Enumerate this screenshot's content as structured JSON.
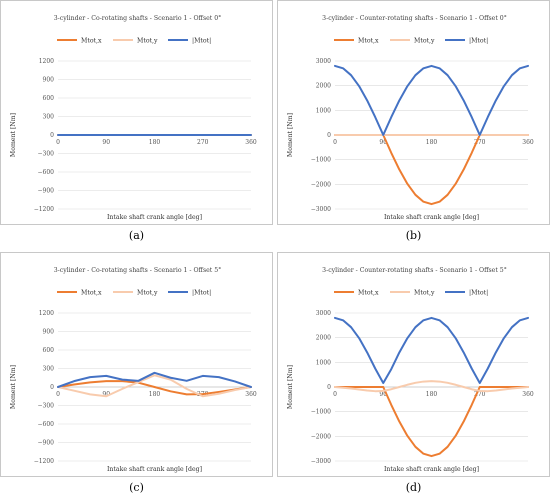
{
  "colors": {
    "mx": "#ED7D31",
    "my": "#F8CBAD",
    "mt": "#4472C4",
    "grid": "#d9d9d9",
    "axis": "#bfbfbf"
  },
  "chart_data": [
    {
      "panel_label": "(a)",
      "type": "line",
      "title": "3-cylinder - Co-rotating shafts - Scenario 1 - Offset 0°",
      "xlabel": "Intake shaft crank angle [deg]",
      "ylabel": "Moment [Nm]",
      "xlim": [
        0,
        360
      ],
      "ylim": [
        -1200,
        1200
      ],
      "xticks": [
        0,
        90,
        180,
        270,
        360
      ],
      "yticks": [
        1200,
        900,
        600,
        300,
        0,
        -300,
        -600,
        -900,
        -1200
      ],
      "x_axis_at": 0,
      "grid": "horizontal",
      "legend": "top",
      "x": [
        0,
        45,
        90,
        135,
        180,
        225,
        270,
        315,
        360
      ],
      "series": [
        {
          "name": "Mtot,x",
          "color_key": "mx",
          "values": [
            0,
            0,
            0,
            0,
            0,
            0,
            0,
            0,
            0
          ]
        },
        {
          "name": "Mtot,y",
          "color_key": "my",
          "values": [
            0,
            0,
            0,
            0,
            0,
            0,
            0,
            0,
            0
          ]
        },
        {
          "name": "|Mtot|",
          "color_key": "mt",
          "values": [
            0,
            0,
            0,
            0,
            0,
            0,
            0,
            0,
            0
          ]
        }
      ]
    },
    {
      "panel_label": "(b)",
      "type": "line",
      "title": "3-cylinder - Counter-rotating shafts - Scenario 1 - Offset 0°",
      "xlabel": "Intake shaft crank angle [deg]",
      "ylabel": "Moment [Nm]",
      "xlim": [
        0,
        360
      ],
      "ylim": [
        -3000,
        3000
      ],
      "xticks": [
        0,
        90,
        180,
        270,
        360
      ],
      "yticks": [
        3000,
        2000,
        1000,
        0,
        -1000,
        -2000,
        -3000
      ],
      "x_axis_at": 0,
      "grid": "horizontal",
      "legend": "top",
      "x": [
        0,
        15,
        30,
        45,
        60,
        75,
        90,
        105,
        120,
        135,
        150,
        165,
        180,
        195,
        210,
        225,
        240,
        255,
        270,
        285,
        300,
        315,
        330,
        345,
        360
      ],
      "series": [
        {
          "name": "Mtot,x",
          "color_key": "mx",
          "values": [
            0,
            0,
            0,
            0,
            0,
            0,
            0,
            -725,
            -1400,
            -1980,
            -2425,
            -2705,
            -2800,
            -2705,
            -2425,
            -1980,
            -1400,
            -725,
            0,
            0,
            0,
            0,
            0,
            0,
            0
          ]
        },
        {
          "name": "Mtot,y",
          "color_key": "my",
          "values": [
            0,
            0,
            0,
            0,
            0,
            0,
            0,
            0,
            0,
            0,
            0,
            0,
            0,
            0,
            0,
            0,
            0,
            0,
            0,
            0,
            0,
            0,
            0,
            0,
            0
          ]
        },
        {
          "name": "|Mtot|",
          "color_key": "mt",
          "values": [
            2800,
            2705,
            2425,
            1980,
            1400,
            725,
            0,
            725,
            1400,
            1980,
            2425,
            2705,
            2800,
            2705,
            2425,
            1980,
            1400,
            725,
            0,
            725,
            1400,
            1980,
            2425,
            2705,
            2800
          ]
        }
      ]
    },
    {
      "panel_label": "(c)",
      "type": "line",
      "title": "3-cylinder - Co-rotating shafts - Scenario 1 - Offset 5°",
      "xlabel": "Intake shaft crank angle [deg]",
      "ylabel": "Moment [Nm]",
      "xlim": [
        0,
        360
      ],
      "ylim": [
        -1200,
        1200
      ],
      "xticks": [
        0,
        90,
        180,
        270,
        360
      ],
      "yticks": [
        1200,
        900,
        600,
        300,
        0,
        -300,
        -600,
        -900,
        -1200
      ],
      "x_axis_at": 0,
      "grid": "horizontal",
      "legend": "top",
      "x": [
        0,
        30,
        60,
        90,
        120,
        150,
        180,
        210,
        240,
        270,
        300,
        330,
        360
      ],
      "series": [
        {
          "name": "Mtot,x",
          "color_key": "mx",
          "values": [
            0,
            40,
            75,
            95,
            95,
            70,
            0,
            -70,
            -120,
            -115,
            -80,
            -40,
            0
          ]
        },
        {
          "name": "Mtot,y",
          "color_key": "my",
          "values": [
            0,
            -60,
            -120,
            -150,
            -30,
            80,
            190,
            120,
            -30,
            -150,
            -110,
            -50,
            0
          ]
        },
        {
          "name": "|Mtot|",
          "color_key": "mt",
          "values": [
            0,
            95,
            160,
            180,
            120,
            100,
            230,
            150,
            100,
            180,
            160,
            90,
            0
          ]
        }
      ]
    },
    {
      "panel_label": "(d)",
      "type": "line",
      "title": "3-cylinder - Counter-rotating shafts - Scenario 1 - Offset 5°",
      "xlabel": "Intake shaft crank angle [deg]",
      "ylabel": "Moment [Nm]",
      "xlim": [
        0,
        360
      ],
      "ylim": [
        -3000,
        3000
      ],
      "xticks": [
        0,
        90,
        180,
        270,
        360
      ],
      "yticks": [
        3000,
        2000,
        1000,
        0,
        -1000,
        -2000,
        -3000
      ],
      "x_axis_at": 0,
      "grid": "horizontal",
      "legend": "top",
      "x": [
        0,
        15,
        30,
        45,
        60,
        75,
        90,
        105,
        120,
        135,
        150,
        165,
        180,
        195,
        210,
        225,
        240,
        255,
        270,
        285,
        300,
        315,
        330,
        345,
        360
      ],
      "series": [
        {
          "name": "Mtot,x",
          "color_key": "mx",
          "values": [
            0,
            0,
            0,
            0,
            0,
            0,
            0,
            -725,
            -1400,
            -1980,
            -2425,
            -2705,
            -2800,
            -2705,
            -2425,
            -1980,
            -1400,
            -725,
            0,
            0,
            0,
            0,
            0,
            0,
            0
          ]
        },
        {
          "name": "Mtot,y",
          "color_key": "my",
          "values": [
            0,
            -30,
            -60,
            -100,
            -140,
            -170,
            -160,
            -90,
            0,
            90,
            170,
            220,
            240,
            220,
            170,
            90,
            0,
            -90,
            -160,
            -170,
            -140,
            -100,
            -60,
            -30,
            0
          ]
        },
        {
          "name": "|Mtot|",
          "color_key": "mt",
          "values": [
            2800,
            2705,
            2425,
            1980,
            1400,
            750,
            160,
            725,
            1400,
            1980,
            2425,
            2705,
            2800,
            2705,
            2425,
            1980,
            1400,
            750,
            160,
            750,
            1400,
            1980,
            2425,
            2705,
            2800
          ]
        }
      ]
    }
  ]
}
